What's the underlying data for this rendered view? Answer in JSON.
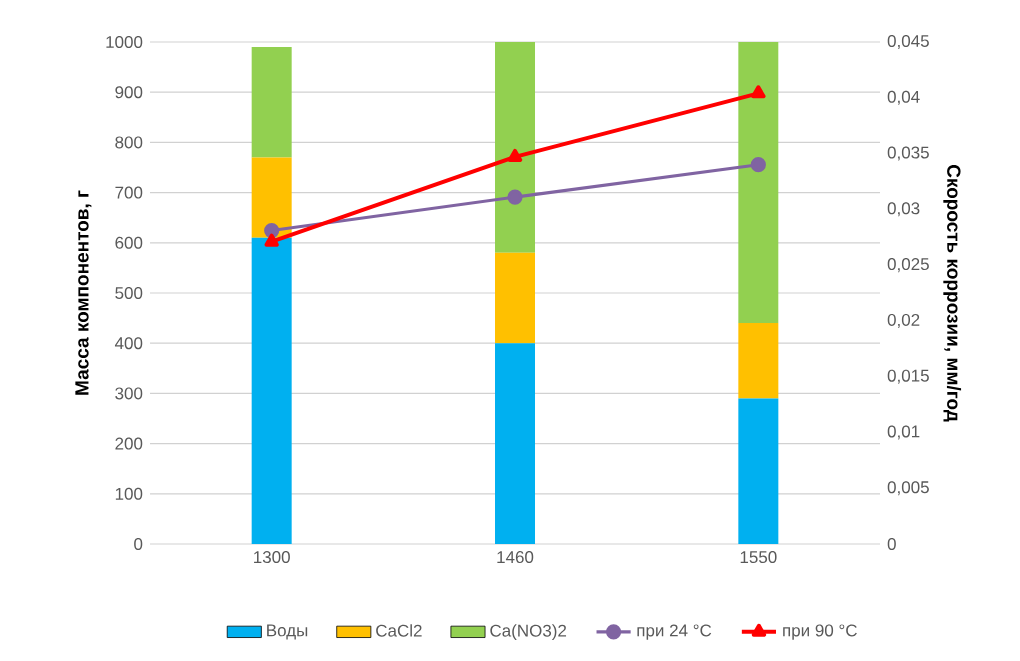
{
  "chart_data": {
    "type": "bar",
    "stacked": true,
    "categories": [
      "1300",
      "1460",
      "1550"
    ],
    "series": [
      {
        "name": "Воды",
        "color": "#00b0f0",
        "values": [
          610,
          400,
          290
        ]
      },
      {
        "name": "CaCl2",
        "color": "#ffc000",
        "values": [
          160,
          180,
          150
        ]
      },
      {
        "name": "Ca(NO3)2",
        "color": "#92d050",
        "values": [
          220,
          420,
          560
        ]
      },
      {
        "name": "при 24 °C",
        "type": "line",
        "axis": "y2",
        "marker": "circle",
        "color": "#8064a2",
        "values": [
          0.0281,
          0.0311,
          0.034
        ]
      },
      {
        "name": "при 90 °C",
        "type": "line",
        "axis": "y2",
        "marker": "triangle",
        "color": "#ff0000",
        "values": [
          0.0271,
          0.0347,
          0.0404
        ]
      }
    ],
    "ylabel": "Масса компонентов, г",
    "y2label": "Скорость коррозии, мм/год",
    "ylim": [
      0,
      1000
    ],
    "yticks": [
      0,
      100,
      200,
      300,
      400,
      500,
      600,
      700,
      800,
      900,
      1000
    ],
    "y2lim": [
      0,
      0.045
    ],
    "y2ticks": [
      0,
      {
        "value": 0.005,
        "label": "0,005"
      },
      {
        "value": 0.01,
        "label": "0,01"
      },
      {
        "value": 0.015,
        "label": "0,015"
      },
      {
        "value": 0.02,
        "label": "0,02"
      },
      {
        "value": 0.025,
        "label": "0,025"
      },
      {
        "value": 0.03,
        "label": "0,03"
      },
      {
        "value": 0.035,
        "label": "0,035"
      },
      {
        "value": 0.04,
        "label": "0,04"
      },
      {
        "value": 0.045,
        "label": "0,045"
      }
    ],
    "grid": "y",
    "legend": "bottom"
  }
}
